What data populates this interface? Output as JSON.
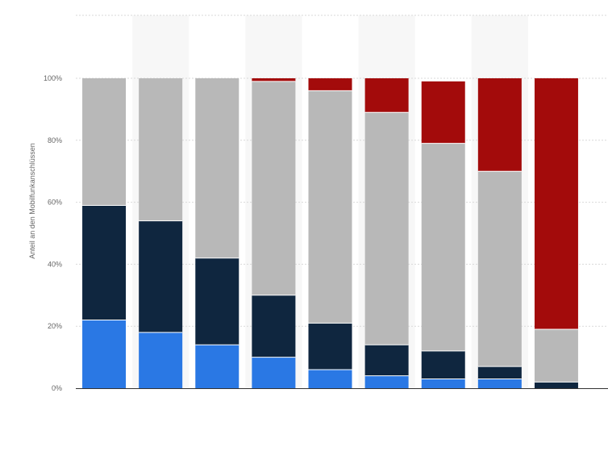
{
  "chart_data": {
    "type": "bar",
    "stacked": true,
    "title": "",
    "xlabel": "",
    "ylabel": "Anteil an den Mobilfunkanschlüssen",
    "ylim": [
      0,
      100
    ],
    "y_unit": "%",
    "y_ticks": [
      "0%",
      "20%",
      "40%",
      "60%",
      "80%",
      "100%"
    ],
    "categories": [
      "",
      "",
      "",
      "",
      "",
      "",
      "",
      "",
      ""
    ],
    "legend": "none",
    "grid": true,
    "series": [
      {
        "color": "#2a78e4",
        "values": [
          22,
          18,
          14,
          10,
          6,
          4,
          3,
          3,
          0
        ]
      },
      {
        "color": "#0f263f",
        "values": [
          37,
          36,
          28,
          20,
          15,
          10,
          9,
          4,
          2
        ]
      },
      {
        "color": "#b8b8b8",
        "values": [
          41,
          46,
          58,
          69,
          75,
          75,
          67,
          63,
          17
        ]
      },
      {
        "color": "#a30b0b",
        "values": [
          0,
          0,
          0,
          1,
          4,
          11,
          20,
          30,
          81
        ]
      }
    ]
  },
  "colors": {
    "gridline": "#d9d9d9",
    "axis_line": "#333333",
    "tick_text": "#666666",
    "band_alt": "#f7f7f7",
    "bar_separator": "#ffffff"
  }
}
